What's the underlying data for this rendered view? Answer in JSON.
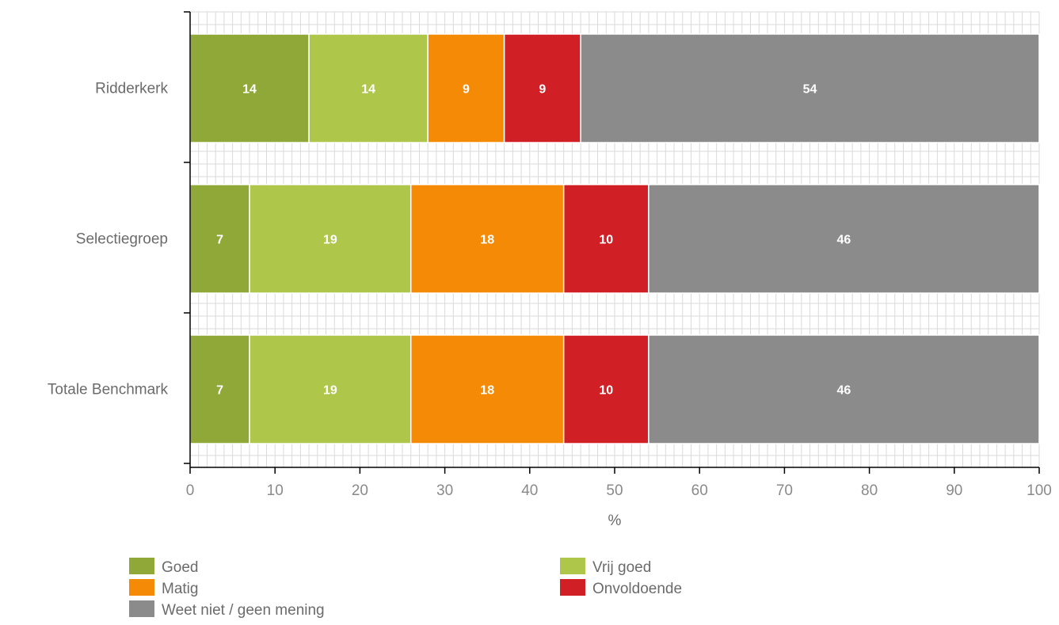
{
  "chart_data": {
    "type": "bar",
    "orientation": "horizontal",
    "stacked": true,
    "title": "",
    "xlabel": "%",
    "ylabel": "",
    "xlim": [
      0,
      100
    ],
    "x_ticks": [
      0,
      10,
      20,
      30,
      40,
      50,
      60,
      70,
      80,
      90,
      100
    ],
    "grid": true,
    "legend_position": "bottom",
    "categories": [
      "Ridderkerk",
      "Selectiegroep",
      "Totale Benchmark"
    ],
    "series": [
      {
        "name": "Goed",
        "color": "#8fa838",
        "values": [
          14,
          7,
          7
        ]
      },
      {
        "name": "Vrij goed",
        "color": "#aec74a",
        "values": [
          14,
          19,
          19
        ]
      },
      {
        "name": "Matig",
        "color": "#f58a07",
        "values": [
          9,
          18,
          18
        ]
      },
      {
        "name": "Onvoldoende",
        "color": "#d11f26",
        "values": [
          9,
          10,
          10
        ]
      },
      {
        "name": "Weet niet / geen mening",
        "color": "#8b8b8b",
        "values": [
          54,
          46,
          46
        ]
      }
    ],
    "legend_order": [
      "Goed",
      "Vrij goed",
      "Matig",
      "Onvoldoende",
      "Weet niet / geen mening"
    ]
  }
}
